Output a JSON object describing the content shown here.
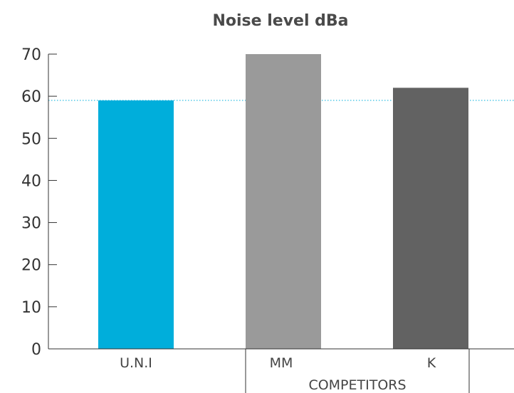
{
  "chart_data": {
    "type": "bar",
    "title": "Noise level dBa",
    "categories": [
      "U.N.I",
      "MM",
      "K"
    ],
    "values": [
      59,
      70,
      62
    ],
    "colors": [
      "#00aedb",
      "#9a9a9a",
      "#626262"
    ],
    "group_label": "COMPETITORS",
    "ylim": [
      0,
      70
    ],
    "yticks": [
      0,
      10,
      20,
      30,
      40,
      50,
      60,
      70
    ],
    "reference_line": {
      "value": 59,
      "style": "dotted",
      "color": "#00aedb"
    },
    "grid": false,
    "legend": "none"
  }
}
